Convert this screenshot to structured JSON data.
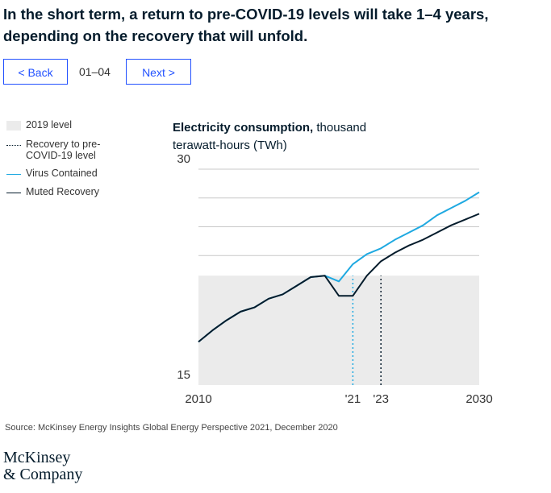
{
  "header": {
    "title": "In the short term, a return to pre-COVID-19 levels will take 1–4 years, depending on the recovery that will unfold."
  },
  "nav": {
    "back": "< Back",
    "page": "01–04",
    "next": "Next >"
  },
  "chart_data": {
    "type": "line",
    "y_label_bold": "Electricity consumption,",
    "y_label": "thousand terawatt-hours (TWh)",
    "x": [
      2010,
      2011,
      2012,
      2013,
      2014,
      2015,
      2016,
      2017,
      2018,
      2019,
      2020,
      2021,
      2022,
      2023,
      2024,
      2025,
      2026,
      2027,
      2028,
      2029,
      2030
    ],
    "series": [
      {
        "name": "Virus Contained",
        "color": "#1fa9e1",
        "values": [
          18.0,
          18.8,
          19.5,
          20.1,
          20.4,
          21.0,
          21.3,
          21.9,
          22.5,
          22.6,
          22.2,
          23.4,
          24.1,
          24.5,
          25.1,
          25.6,
          26.1,
          26.8,
          27.3,
          27.8,
          28.4
        ]
      },
      {
        "name": "Muted Recovery",
        "color": "#051c2c",
        "values": [
          18.0,
          18.8,
          19.5,
          20.1,
          20.4,
          21.0,
          21.3,
          21.9,
          22.5,
          22.6,
          21.2,
          21.2,
          22.6,
          23.6,
          24.2,
          24.7,
          25.1,
          25.6,
          26.1,
          26.5,
          26.9
        ]
      }
    ],
    "band": {
      "name": "2019 level",
      "value": 22.6,
      "color": "#ebebeb"
    },
    "markers_name": "Recovery to pre-COVID-19 level",
    "markers": [
      {
        "x": 2021,
        "color": "#1fa9e1"
      },
      {
        "x": 2023,
        "color": "#051c2c"
      }
    ],
    "xlim": [
      2010,
      2030
    ],
    "xticks": [
      2010,
      {
        "value": 2021,
        "label": "'21"
      },
      {
        "value": 2023,
        "label": "'23"
      },
      2030
    ],
    "ylim": [
      15,
      30
    ],
    "yticks": [
      15,
      {
        "value": 24,
        "label": null
      },
      {
        "value": 26,
        "label": null
      },
      {
        "value": 28,
        "label": null
      },
      30
    ],
    "grid": true
  },
  "source": "Source: McKinsey Energy Insights Global Energy Perspective 2021, December 2020",
  "logo": [
    "McKinsey",
    "& Company"
  ]
}
